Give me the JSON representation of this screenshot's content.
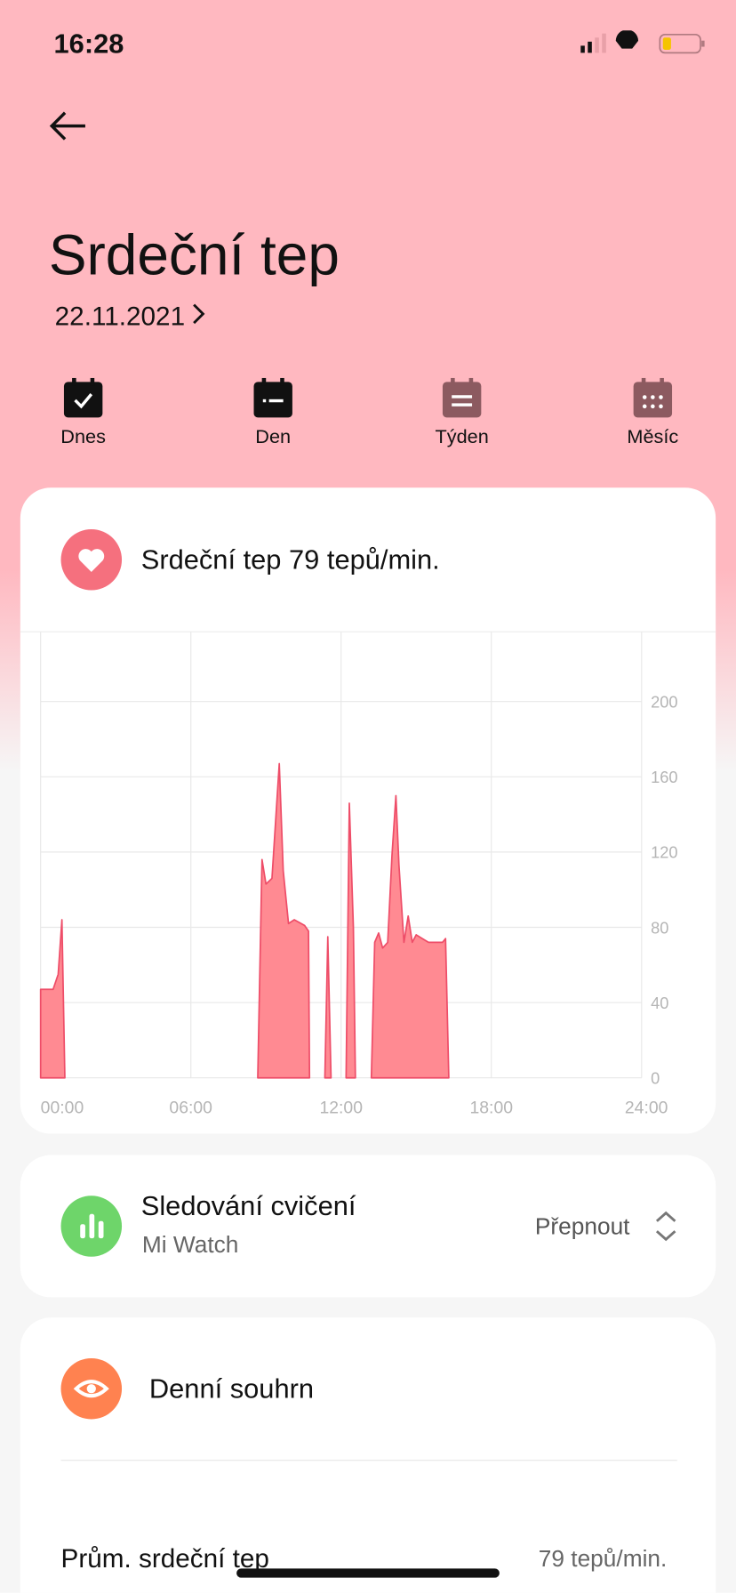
{
  "status": {
    "time": "16:28"
  },
  "header": {
    "title": "Srdeční tep",
    "date": "22.11.2021"
  },
  "tabs": [
    "Dnes",
    "Den",
    "Týden",
    "Měsíc"
  ],
  "heart_card": {
    "title": "Srdeční tep 79 tepů/min."
  },
  "chart_data": {
    "type": "area",
    "x": [
      0,
      0,
      0.5,
      0.7,
      0.85,
      0.97,
      null,
      8.67,
      8.84,
      9.0,
      9.24,
      9.53,
      9.69,
      9.9,
      10.13,
      10.54,
      10.7,
      10.74,
      null,
      11.35,
      11.47,
      11.6,
      null,
      12.2,
      12.33,
      12.49,
      12.57,
      null,
      13.21,
      13.34,
      13.5,
      13.66,
      13.86,
      14.03,
      14.19,
      14.31,
      14.51,
      14.68,
      14.84,
      15.0,
      15.24,
      15.49,
      16.05,
      16.17,
      16.3
    ],
    "values": [
      0,
      47,
      47,
      55,
      84,
      0,
      null,
      0,
      116,
      103,
      106,
      167,
      110,
      82,
      84,
      81,
      78,
      0,
      null,
      0,
      75,
      0,
      null,
      0,
      146,
      80,
      0,
      null,
      0,
      72,
      77,
      69,
      72,
      118,
      150,
      113,
      72,
      86,
      72,
      76,
      74,
      72,
      72,
      74,
      0
    ],
    "color": "#ff8a92",
    "line_color": "#ee4d68",
    "xlim": [
      0,
      24
    ],
    "xticks": [
      {
        "value": 0,
        "label": "00:00"
      },
      {
        "value": 6,
        "label": "06:00"
      },
      {
        "value": 12,
        "label": "12:00"
      },
      {
        "value": 18,
        "label": "18:00"
      },
      {
        "value": 24,
        "label": "24:00"
      }
    ],
    "ylim": [
      0,
      237
    ],
    "yticks": [
      0,
      40,
      80,
      120,
      160,
      200
    ],
    "grid": true
  },
  "exercise": {
    "title": "Sledování cvičení",
    "device": "Mi Watch",
    "action": "Přepnout"
  },
  "summary": {
    "title": "Denní souhrn",
    "rows": [
      {
        "label": "Prům. srdeční tep",
        "value": "79 tepů/min."
      }
    ]
  }
}
